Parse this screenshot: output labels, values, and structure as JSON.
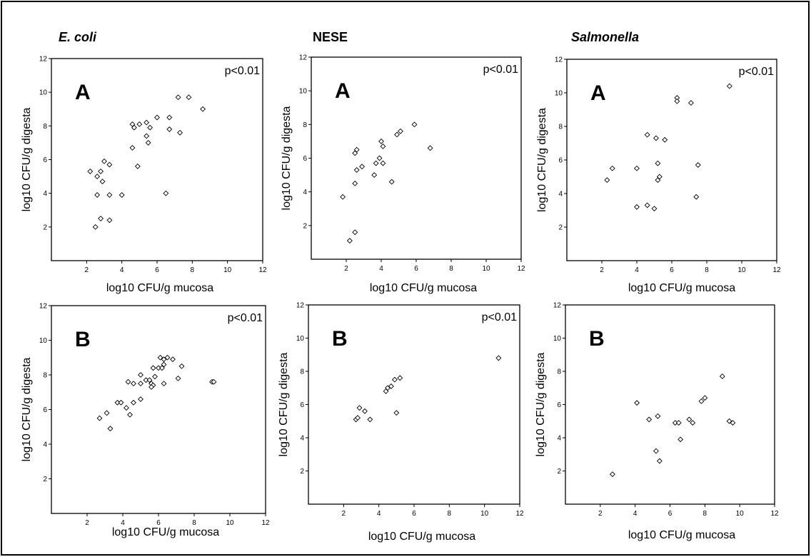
{
  "columns": [
    {
      "label": "E. coli",
      "italic": true
    },
    {
      "label": "NESE",
      "italic": false
    },
    {
      "label": "Salmonella",
      "italic": true
    }
  ],
  "chart_data": [
    {
      "type": "scatter",
      "organism": "E. coli",
      "panel": "A",
      "pvalue": "p<0.01",
      "xlabel": "log10 CFU/g mucosa",
      "ylabel": "log10 CFU/g digesta",
      "xlim": [
        0,
        12
      ],
      "ylim": [
        0,
        12
      ],
      "xticks": [
        "2",
        "4",
        "6",
        "8",
        "10",
        "12"
      ],
      "yticks": [
        "2",
        "4",
        "6",
        "8",
        "10",
        "12"
      ],
      "points": [
        [
          2.2,
          5.3
        ],
        [
          2.6,
          5.0
        ],
        [
          2.8,
          5.3
        ],
        [
          2.9,
          4.7
        ],
        [
          3.0,
          5.9
        ],
        [
          3.3,
          5.7
        ],
        [
          2.6,
          3.9
        ],
        [
          3.3,
          3.9
        ],
        [
          4.0,
          3.9
        ],
        [
          2.5,
          2.0
        ],
        [
          2.8,
          2.5
        ],
        [
          3.3,
          2.4
        ],
        [
          4.6,
          8.1
        ],
        [
          4.7,
          7.9
        ],
        [
          5.0,
          8.1
        ],
        [
          5.4,
          8.2
        ],
        [
          5.6,
          7.9
        ],
        [
          6.0,
          8.5
        ],
        [
          4.6,
          6.7
        ],
        [
          4.9,
          5.6
        ],
        [
          5.4,
          7.4
        ],
        [
          5.5,
          7.0
        ],
        [
          6.7,
          8.5
        ],
        [
          6.7,
          7.8
        ],
        [
          7.3,
          7.6
        ],
        [
          7.2,
          9.7
        ],
        [
          7.8,
          9.7
        ],
        [
          8.6,
          9.0
        ],
        [
          6.5,
          4.0
        ]
      ]
    },
    {
      "type": "scatter",
      "organism": "NESE",
      "panel": "A",
      "pvalue": "p<0.01",
      "xlabel": "log10 CFU/g mucosa",
      "ylabel": "log10 CFU/g digesta",
      "xlim": [
        0,
        12
      ],
      "ylim": [
        0,
        12
      ],
      "xticks": [
        "2",
        "4",
        "6",
        "8",
        "10",
        "12"
      ],
      "yticks": [
        "2",
        "4",
        "6",
        "8",
        "10",
        "12"
      ],
      "points": [
        [
          1.8,
          3.7
        ],
        [
          2.2,
          1.1
        ],
        [
          2.5,
          1.6
        ],
        [
          2.5,
          4.5
        ],
        [
          2.5,
          6.3
        ],
        [
          2.6,
          6.5
        ],
        [
          2.6,
          5.3
        ],
        [
          2.9,
          5.5
        ],
        [
          3.6,
          5.0
        ],
        [
          3.7,
          5.7
        ],
        [
          4.0,
          7.0
        ],
        [
          4.1,
          6.7
        ],
        [
          3.9,
          6.0
        ],
        [
          4.1,
          5.7
        ],
        [
          4.6,
          4.6
        ],
        [
          4.9,
          7.4
        ],
        [
          5.1,
          7.6
        ],
        [
          5.9,
          8.0
        ],
        [
          6.8,
          6.6
        ]
      ]
    },
    {
      "type": "scatter",
      "organism": "Salmonella",
      "panel": "A",
      "pvalue": "p<0.01",
      "xlabel": "log10 CFU/g mucosa",
      "ylabel": "log10 CFU/g digesta",
      "xlim": [
        0,
        12
      ],
      "ylim": [
        0,
        12
      ],
      "xticks": [
        "2",
        "4",
        "6",
        "8",
        "10",
        "12"
      ],
      "yticks": [
        "2",
        "4",
        "6",
        "8",
        "10",
        "12"
      ],
      "points": [
        [
          2.3,
          4.8
        ],
        [
          2.6,
          5.5
        ],
        [
          4.0,
          5.5
        ],
        [
          4.0,
          3.2
        ],
        [
          4.6,
          3.3
        ],
        [
          5.0,
          3.1
        ],
        [
          4.6,
          7.5
        ],
        [
          5.1,
          7.3
        ],
        [
          5.6,
          7.2
        ],
        [
          5.2,
          5.8
        ],
        [
          5.3,
          5.0
        ],
        [
          5.2,
          4.8
        ],
        [
          6.3,
          9.7
        ],
        [
          6.3,
          9.5
        ],
        [
          7.1,
          9.4
        ],
        [
          7.5,
          5.7
        ],
        [
          7.4,
          3.8
        ],
        [
          9.3,
          10.4
        ]
      ]
    },
    {
      "type": "scatter",
      "organism": "E. coli",
      "panel": "B",
      "pvalue": "p<0.01",
      "xlabel": "log10 CFU/g mucosa",
      "ylabel": "log10 CFU/g digesta",
      "xlim": [
        0,
        12
      ],
      "ylim": [
        0,
        12
      ],
      "xticks": [
        "2",
        "4",
        "6",
        "8",
        "10",
        "12"
      ],
      "yticks": [
        "2",
        "4",
        "6",
        "8",
        "10",
        "12"
      ],
      "points": [
        [
          2.7,
          5.5
        ],
        [
          3.1,
          5.8
        ],
        [
          3.3,
          4.9
        ],
        [
          3.7,
          6.4
        ],
        [
          3.9,
          6.4
        ],
        [
          4.2,
          6.1
        ],
        [
          4.4,
          5.7
        ],
        [
          4.3,
          7.6
        ],
        [
          4.6,
          7.5
        ],
        [
          4.6,
          6.4
        ],
        [
          5.0,
          7.5
        ],
        [
          5.0,
          8.0
        ],
        [
          5.0,
          6.6
        ],
        [
          5.3,
          7.7
        ],
        [
          5.5,
          7.7
        ],
        [
          5.6,
          7.5
        ],
        [
          5.7,
          7.4
        ],
        [
          5.6,
          7.3
        ],
        [
          5.7,
          8.4
        ],
        [
          5.8,
          7.9
        ],
        [
          6.0,
          8.4
        ],
        [
          6.1,
          9.0
        ],
        [
          6.2,
          8.4
        ],
        [
          6.3,
          8.6
        ],
        [
          6.3,
          8.9
        ],
        [
          6.5,
          9.0
        ],
        [
          6.8,
          8.9
        ],
        [
          6.3,
          7.5
        ],
        [
          7.1,
          7.8
        ],
        [
          7.3,
          8.5
        ],
        [
          9.0,
          7.6
        ],
        [
          9.1,
          7.6
        ]
      ]
    },
    {
      "type": "scatter",
      "organism": "NESE",
      "panel": "B",
      "pvalue": "p<0.01",
      "xlabel": "log10 CFU/g mucosa",
      "ylabel": "log10 CFU/g digesta",
      "xlim": [
        0,
        12
      ],
      "ylim": [
        0,
        12
      ],
      "xticks": [
        "2",
        "4",
        "6",
        "8",
        "10",
        "12"
      ],
      "yticks": [
        "2",
        "4",
        "6",
        "8",
        "10",
        "12"
      ],
      "points": [
        [
          2.7,
          5.1
        ],
        [
          2.8,
          5.2
        ],
        [
          2.9,
          5.8
        ],
        [
          3.2,
          5.6
        ],
        [
          3.5,
          5.1
        ],
        [
          4.4,
          6.8
        ],
        [
          4.5,
          7.0
        ],
        [
          4.7,
          7.1
        ],
        [
          4.9,
          7.5
        ],
        [
          5.2,
          7.6
        ],
        [
          5.0,
          5.5
        ],
        [
          10.8,
          8.8
        ]
      ]
    },
    {
      "type": "scatter",
      "organism": "Salmonella",
      "panel": "B",
      "pvalue": "",
      "xlabel": "log10 CFU/g mucosa",
      "ylabel": "log10 CFU/g digesta",
      "xlim": [
        0,
        12
      ],
      "ylim": [
        0,
        12
      ],
      "xticks": [
        "2",
        "4",
        "6",
        "8",
        "10",
        "12"
      ],
      "yticks": [
        "2",
        "4",
        "6",
        "8",
        "10",
        "12"
      ],
      "points": [
        [
          2.7,
          1.8
        ],
        [
          4.1,
          6.1
        ],
        [
          4.8,
          5.1
        ],
        [
          5.3,
          5.3
        ],
        [
          5.2,
          3.2
        ],
        [
          5.4,
          2.6
        ],
        [
          6.3,
          4.9
        ],
        [
          6.5,
          4.9
        ],
        [
          6.6,
          3.9
        ],
        [
          7.1,
          5.1
        ],
        [
          7.3,
          4.9
        ],
        [
          7.8,
          6.2
        ],
        [
          8.0,
          6.4
        ],
        [
          9.0,
          7.7
        ],
        [
          9.4,
          5.0
        ],
        [
          9.6,
          4.9
        ]
      ]
    }
  ]
}
